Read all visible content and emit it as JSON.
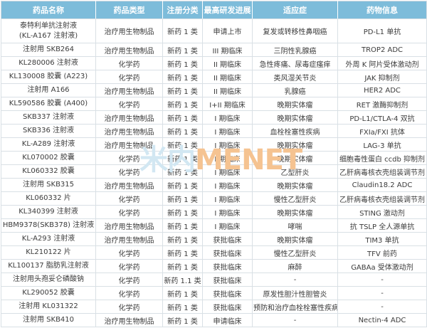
{
  "watermark": {
    "cn": "米内",
    "en": "MENET"
  },
  "colors": {
    "header_bg": "#7dbcda",
    "header_text": "#ffffff",
    "grid_border": "#d9e0e5",
    "body_text": "#3b3b3b",
    "watermark_cn": "#d2e7f2",
    "watermark_en": "#f5c391"
  },
  "table": {
    "headers": [
      "药品名称",
      "药品类型",
      "注册分类",
      "最高研发进展",
      "适应症",
      "药物信息"
    ],
    "col_keys": [
      "name",
      "type",
      "reg-class",
      "progress",
      "indication",
      "info"
    ],
    "rows": [
      [
        "泰特利单抗注射液\n(KL-A167 注射液)",
        "治疗用生物制品",
        "新药 1 类",
        "申请上市",
        "复发或转移性鼻咽癌",
        "PD-L1 单抗"
      ],
      [
        "注射用 SKB264",
        "治疗用生物制品",
        "新药 1 类",
        "III 期临床",
        "三阴性乳腺癌",
        "TROP2 ADC"
      ],
      [
        "KL280006 注射液",
        "化学药",
        "新药 1 类",
        "II 期临床",
        "急性疼痛、尿毒症瘙痒",
        "外周 K 阿片受体激动剂"
      ],
      [
        "KL130008 胶囊 (A223)",
        "化学药",
        "新药 1 类",
        "II 期临床",
        "类风湿关节炎",
        "JAK 抑制剂"
      ],
      [
        "注射用 A166",
        "治疗用生物制品",
        "新药 1 类",
        "II 期临床",
        "乳腺癌",
        "HER2 ADC"
      ],
      [
        "KL590586 胶囊 (A400)",
        "化学药",
        "新药 1 类",
        "I+II 期临床",
        "晚期实体瘤",
        "RET 激酶抑制剂"
      ],
      [
        "SKB337 注射液",
        "治疗用生物制品",
        "新药 1 类",
        "I 期临床",
        "晚期实体瘤",
        "PD-L1/CTLA-4 双抗"
      ],
      [
        "SKB336 注射液",
        "治疗用生物制品",
        "新药 1 类",
        "I 期临床",
        "血栓栓塞性疾病",
        "FXIa/FXI 抗体"
      ],
      [
        "KL-A289 注射液",
        "治疗用生物制品",
        "新药 1 类",
        "I 期临床",
        "晚期实体瘤",
        "LAG-3 单抗"
      ],
      [
        "KL070002 胶囊",
        "化学药",
        "新药 1 类",
        "I 期临床",
        "晚期实体瘤",
        "细胞毒性蛋白 ccdb 抑制剂"
      ],
      [
        "KL060332 胶囊",
        "化学药",
        "新药 1 类",
        "I 期临床",
        "乙型肝炎",
        "乙肝病毒核衣壳组装调节剂"
      ],
      [
        "注射用 SKB315",
        "治疗用生物制品",
        "新药 1 类",
        "I 期临床",
        "晚期实体瘤",
        "Claudin18.2 ADC"
      ],
      [
        "KL060332 片",
        "化学药",
        "新药 1 类",
        "I 期临床",
        "慢性乙型肝炎",
        "乙肝病毒核衣壳组装调节剂"
      ],
      [
        "KL340399 注射液",
        "化学药",
        "新药 1 类",
        "I 期临床",
        "晚期实体瘤",
        "STING 激动剂"
      ],
      [
        "HBM9378(SKB378) 注射液",
        "治疗用生物制品",
        "新药 1 类",
        "I 期临床",
        "哮喘",
        "抗 TSLP 全人源单抗"
      ],
      [
        "KL-A293 注射液",
        "治疗用生物制品",
        "新药 1 类",
        "获批临床",
        "晚期实体瘤",
        "TIM3 单抗"
      ],
      [
        "KL210122 片",
        "化学药",
        "新药 1 类",
        "获批临床",
        "慢性乙型肝炎",
        "TFV 前药"
      ],
      [
        "KL100137 脂肪乳注射液",
        "化学药",
        "新药 1 类",
        "获批临床",
        "麻醉",
        "GABAa 受体激动剂"
      ],
      [
        "注射用头孢妥仑磷酸钠",
        "化学药",
        "新药 1.1 类",
        "获批临床",
        "-",
        "-"
      ],
      [
        "KL290052 胶囊",
        "化学药",
        "新药 1 类",
        "获批临床",
        "原发性胆汁性胆管炎",
        "-"
      ],
      [
        "注射用 KL031322",
        "化学药",
        "新药 1 类",
        "获批临床",
        "预防和治疗血栓栓塞性疾病",
        "-"
      ],
      [
        "注射用 SKB410",
        "治疗用生物制品",
        "新药 1 类",
        "申请临床",
        "-",
        "Nectin-4 ADC"
      ]
    ]
  }
}
